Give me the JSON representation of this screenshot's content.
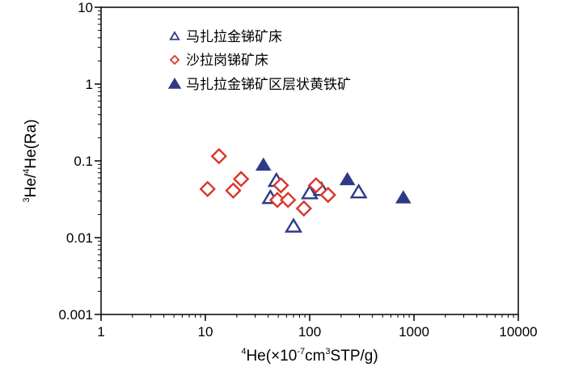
{
  "chart_data": {
    "type": "scatter",
    "title": "",
    "x_scale": "log",
    "y_scale": "log",
    "xlim": [
      1,
      10000
    ],
    "ylim": [
      0.001,
      10
    ],
    "x_ticks": [
      {
        "value": 1,
        "label": "1"
      },
      {
        "value": 10,
        "label": "10"
      },
      {
        "value": 100,
        "label": "100"
      },
      {
        "value": 1000,
        "label": "1000"
      },
      {
        "value": 10000,
        "label": "10000"
      }
    ],
    "y_ticks": [
      {
        "value": 0.001,
        "label": "0.001"
      },
      {
        "value": 0.01,
        "label": "0.01"
      },
      {
        "value": 0.1,
        "label": "0.1"
      },
      {
        "value": 1,
        "label": "1"
      },
      {
        "value": 10,
        "label": "10"
      }
    ],
    "xlabel": {
      "sup1": "4",
      "main": "He(×10",
      "sup2": "-7",
      "mid": "cm",
      "sup3": "3",
      "end": "STP/g)"
    },
    "ylabel": {
      "sup1": "3",
      "a": "He/",
      "sup2": "4",
      "b": "He(Ra)"
    },
    "legend_position": "top-left",
    "grid": false,
    "series": [
      {
        "name": "马扎拉金锑矿床",
        "marker": "triangle-open",
        "color": "#2e3a87",
        "points": [
          {
            "x": 42,
            "y": 0.033
          },
          {
            "x": 48,
            "y": 0.055
          },
          {
            "x": 70,
            "y": 0.014
          },
          {
            "x": 100,
            "y": 0.038
          },
          {
            "x": 130,
            "y": 0.042
          },
          {
            "x": 295,
            "y": 0.039
          }
        ]
      },
      {
        "name": "沙拉岗锑矿床",
        "marker": "diamond-open",
        "color": "#d9362b",
        "points": [
          {
            "x": 10.5,
            "y": 0.043
          },
          {
            "x": 13.5,
            "y": 0.115
          },
          {
            "x": 18.5,
            "y": 0.041
          },
          {
            "x": 22,
            "y": 0.058
          },
          {
            "x": 49,
            "y": 0.031
          },
          {
            "x": 53,
            "y": 0.048
          },
          {
            "x": 62,
            "y": 0.031
          },
          {
            "x": 88,
            "y": 0.024
          },
          {
            "x": 115,
            "y": 0.048
          },
          {
            "x": 150,
            "y": 0.036
          }
        ]
      },
      {
        "name": "马扎拉金锑矿区层状黄铁矿",
        "marker": "triangle-filled",
        "color": "#2e3a87",
        "points": [
          {
            "x": 36,
            "y": 0.088
          },
          {
            "x": 230,
            "y": 0.057
          },
          {
            "x": 790,
            "y": 0.033
          }
        ]
      }
    ]
  }
}
